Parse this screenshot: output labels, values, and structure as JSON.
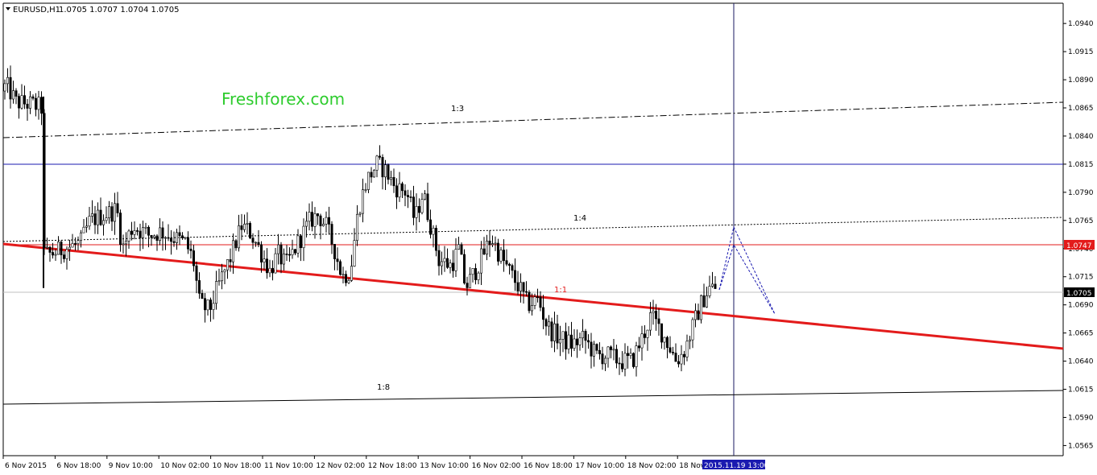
{
  "header": {
    "symbol_timeframe": "EURUSD,H1",
    "ohlc": "1.0705 1.0707 1.0704 1.0705"
  },
  "watermark": "Freshforex.com",
  "colors": {
    "background": "#ffffff",
    "candle": "#000000",
    "trend_line": "#e31b1b",
    "level_line": "#e31b1b",
    "horizontal_blue": "#1a1ab0",
    "projection": "#1a1ab0",
    "price_tag_bg": "#e31b1b",
    "watermark": "#2ecc2e"
  },
  "chart_data": {
    "type": "candlestick",
    "symbol": "EURUSD",
    "timeframe": "H1",
    "y_range": [
      1.0556,
      1.0958
    ],
    "y_ticks": [
      "1.0940",
      "1.0915",
      "1.0890",
      "1.0865",
      "1.0840",
      "1.0815",
      "1.0790",
      "1.0765",
      "1.0740",
      "1.0715",
      "1.0690",
      "1.0665",
      "1.0640",
      "1.0615",
      "1.0590",
      "1.0565"
    ],
    "x_ticks": [
      "6 Nov 2015",
      "6 Nov 18:00",
      "9 Nov 10:00",
      "10 Nov 02:00",
      "10 Nov 18:00",
      "11 Nov 10:00",
      "12 Nov 02:00",
      "12 Nov 18:00",
      "13 Nov 10:00",
      "16 Nov 02:00",
      "16 Nov 18:00",
      "17 Nov 10:00",
      "18 Nov 02:00",
      "18 Nov"
    ],
    "cursor_time_label": "2015.11.19 13:00",
    "last_price": "1.0705",
    "level_price": "1.0747",
    "blue_level": 1.0818,
    "gann_fan_labels": [
      "1:1",
      "1:3",
      "1:4",
      "1:8"
    ],
    "price_path": [
      [
        0,
        1.088
      ],
      [
        8,
        1.0885
      ],
      [
        20,
        1.087
      ],
      [
        40,
        1.0868
      ],
      [
        52,
        1.0865
      ],
      [
        54,
        1.0735
      ],
      [
        62,
        1.0735
      ],
      [
        80,
        1.074
      ],
      [
        100,
        1.0745
      ],
      [
        112,
        1.0765
      ],
      [
        130,
        1.077
      ],
      [
        145,
        1.0775
      ],
      [
        152,
        1.074
      ],
      [
        165,
        1.076
      ],
      [
        185,
        1.0752
      ],
      [
        200,
        1.0755
      ],
      [
        215,
        1.075
      ],
      [
        230,
        1.0745
      ],
      [
        240,
        1.073
      ],
      [
        248,
        1.069
      ],
      [
        260,
        1.0685
      ],
      [
        270,
        1.0705
      ],
      [
        285,
        1.073
      ],
      [
        300,
        1.076
      ],
      [
        310,
        1.0755
      ],
      [
        322,
        1.074
      ],
      [
        335,
        1.072
      ],
      [
        345,
        1.0735
      ],
      [
        355,
        1.0725
      ],
      [
        370,
        1.0745
      ],
      [
        385,
        1.0765
      ],
      [
        395,
        1.077
      ],
      [
        405,
        1.076
      ],
      [
        415,
        1.074
      ],
      [
        425,
        1.0715
      ],
      [
        435,
        1.072
      ],
      [
        445,
        1.0775
      ],
      [
        455,
        1.08
      ],
      [
        468,
        1.0815
      ],
      [
        478,
        1.081
      ],
      [
        490,
        1.0795
      ],
      [
        505,
        1.079
      ],
      [
        515,
        1.0765
      ],
      [
        525,
        1.079
      ],
      [
        535,
        1.076
      ],
      [
        545,
        1.073
      ],
      [
        560,
        1.0725
      ],
      [
        570,
        1.074
      ],
      [
        578,
        1.0705
      ],
      [
        590,
        1.072
      ],
      [
        600,
        1.0735
      ],
      [
        610,
        1.075
      ],
      [
        620,
        1.0735
      ],
      [
        632,
        1.072
      ],
      [
        645,
        1.0705
      ],
      [
        655,
        1.069
      ],
      [
        668,
        1.0695
      ],
      [
        680,
        1.067
      ],
      [
        695,
        1.066
      ],
      [
        710,
        1.0655
      ],
      [
        725,
        1.066
      ],
      [
        740,
        1.0645
      ],
      [
        755,
        1.0645
      ],
      [
        770,
        1.064
      ],
      [
        785,
        1.064
      ],
      [
        800,
        1.0665
      ],
      [
        808,
        1.068
      ],
      [
        818,
        1.067
      ],
      [
        830,
        1.0655
      ],
      [
        840,
        1.064
      ],
      [
        850,
        1.065
      ],
      [
        860,
        1.067
      ],
      [
        870,
        1.069
      ],
      [
        880,
        1.0705
      ],
      [
        890,
        1.0705
      ]
    ]
  }
}
